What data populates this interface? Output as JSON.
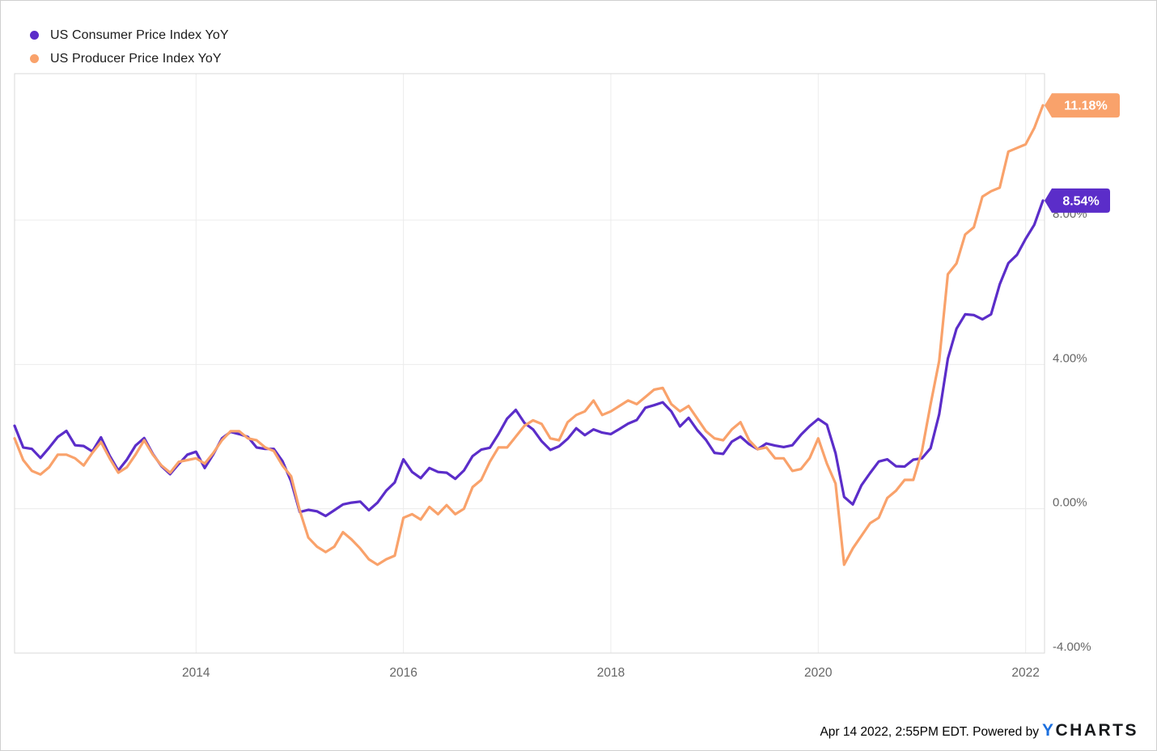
{
  "legend": {
    "items": [
      {
        "label": "US Consumer Price Index YoY"
      },
      {
        "label": "US Producer Price Index YoY"
      }
    ]
  },
  "footer": {
    "text": "Apr 14 2022, 2:55PM EDT. Powered by",
    "logo_y": "Y",
    "logo_rest": "CHARTS"
  },
  "colors": {
    "cpi_purple": "#5b2dc9",
    "ppi_orange": "#f9a26b",
    "gridline": "#ececec",
    "plot_border": "#d9d9d9",
    "tick_label": "#666666",
    "logo_blue": "#1c6fde"
  },
  "chart_data": {
    "type": "line",
    "title": "",
    "frequency": "monthly",
    "x_start": "2012-04",
    "x_end": "2022-03",
    "grid": true,
    "legend_position": "top-left",
    "ylim": [
      -4,
      12.06
    ],
    "y_ticks": [
      {
        "label": "8.00%",
        "value": 8
      },
      {
        "label": "4.00%",
        "value": 4
      },
      {
        "label": "0.00%",
        "value": 0
      },
      {
        "label": "-4.00%",
        "value": -4
      }
    ],
    "x_ticks": [
      {
        "label": "2014",
        "month_index": 21
      },
      {
        "label": "2016",
        "month_index": 45
      },
      {
        "label": "2018",
        "month_index": 69
      },
      {
        "label": "2020",
        "month_index": 93
      },
      {
        "label": "2022",
        "month_index": 117
      }
    ],
    "series": [
      {
        "name": "US Consumer Price Index YoY",
        "color": "#5b2dc9",
        "end_label": "8.54%",
        "end_value": 8.54,
        "values": [
          2.3,
          1.7,
          1.66,
          1.41,
          1.69,
          1.99,
          2.16,
          1.76,
          1.74,
          1.59,
          1.98,
          1.47,
          1.06,
          1.36,
          1.75,
          1.96,
          1.52,
          1.18,
          0.96,
          1.24,
          1.5,
          1.58,
          1.13,
          1.51,
          1.95,
          2.13,
          2.07,
          1.99,
          1.7,
          1.66,
          1.66,
          1.32,
          0.76,
          -0.09,
          -0.03,
          -0.07,
          -0.2,
          -0.04,
          0.12,
          0.17,
          0.2,
          -0.04,
          0.17,
          0.5,
          0.73,
          1.37,
          1.02,
          0.85,
          1.13,
          1.02,
          1.0,
          0.83,
          1.06,
          1.46,
          1.64,
          1.69,
          2.07,
          2.5,
          2.74,
          2.38,
          2.2,
          1.87,
          1.63,
          1.73,
          1.94,
          2.23,
          2.04,
          2.2,
          2.11,
          2.07,
          2.21,
          2.36,
          2.46,
          2.8,
          2.87,
          2.95,
          2.7,
          2.28,
          2.52,
          2.18,
          1.91,
          1.55,
          1.52,
          1.86,
          2.0,
          1.79,
          1.65,
          1.81,
          1.75,
          1.71,
          1.76,
          2.05,
          2.29,
          2.49,
          2.33,
          1.54,
          0.33,
          0.12,
          0.65,
          0.99,
          1.31,
          1.37,
          1.18,
          1.17,
          1.36,
          1.4,
          1.68,
          2.62,
          4.16,
          4.99,
          5.39,
          5.37,
          5.25,
          5.39,
          6.22,
          6.81,
          7.04,
          7.48,
          7.87,
          8.54
        ]
      },
      {
        "name": "US Producer Price Index YoY",
        "color": "#f9a26b",
        "end_label": "11.18%",
        "end_value": 11.18,
        "values": [
          1.95,
          1.35,
          1.05,
          0.95,
          1.15,
          1.5,
          1.5,
          1.4,
          1.2,
          1.55,
          1.85,
          1.4,
          1.0,
          1.15,
          1.5,
          1.9,
          1.5,
          1.2,
          1.0,
          1.3,
          1.35,
          1.4,
          1.25,
          1.55,
          1.9,
          2.15,
          2.15,
          1.95,
          1.9,
          1.7,
          1.6,
          1.2,
          0.9,
          -0.05,
          -0.8,
          -1.05,
          -1.2,
          -1.05,
          -0.65,
          -0.85,
          -1.1,
          -1.4,
          -1.55,
          -1.4,
          -1.3,
          -0.25,
          -0.15,
          -0.3,
          0.05,
          -0.15,
          0.1,
          -0.15,
          0.0,
          0.6,
          0.8,
          1.3,
          1.7,
          1.7,
          2.0,
          2.3,
          2.45,
          2.35,
          1.95,
          1.9,
          2.4,
          2.6,
          2.7,
          3.0,
          2.6,
          2.7,
          2.85,
          3.0,
          2.9,
          3.1,
          3.3,
          3.35,
          2.9,
          2.7,
          2.85,
          2.5,
          2.15,
          1.95,
          1.9,
          2.2,
          2.4,
          1.9,
          1.65,
          1.7,
          1.4,
          1.4,
          1.05,
          1.1,
          1.4,
          1.95,
          1.25,
          0.7,
          -1.55,
          -1.1,
          -0.75,
          -0.4,
          -0.25,
          0.3,
          0.5,
          0.8,
          0.8,
          1.6,
          2.9,
          4.1,
          6.5,
          6.8,
          7.6,
          7.8,
          8.65,
          8.8,
          8.9,
          9.9,
          10.0,
          10.1,
          10.55,
          11.18
        ]
      }
    ]
  }
}
